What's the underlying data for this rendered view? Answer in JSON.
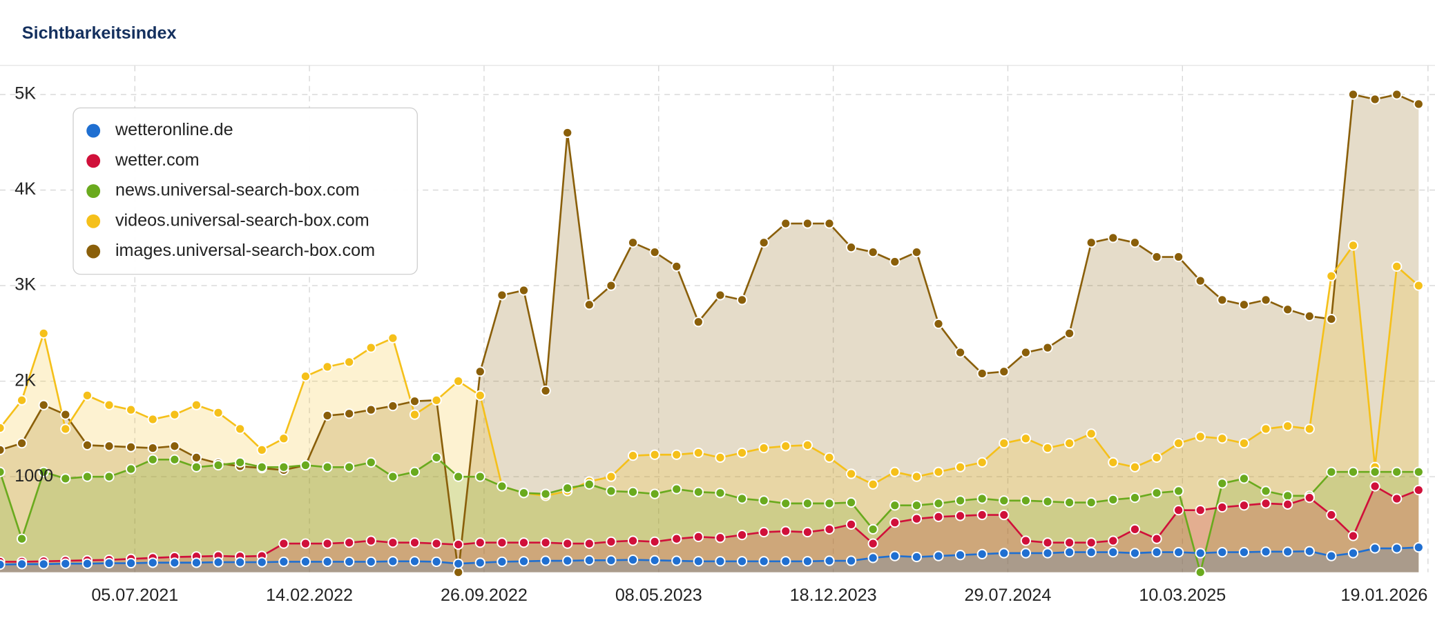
{
  "chart_data": {
    "type": "line",
    "title": "Sichtbarkeitsindex",
    "x": [
      "13.01.2021",
      "10.02.2021",
      "10.03.2021",
      "07.04.2021",
      "05.05.2021",
      "02.06.2021",
      "30.06.2021",
      "28.07.2021",
      "25.08.2021",
      "22.09.2021",
      "20.10.2021",
      "17.11.2021",
      "15.12.2021",
      "12.01.2022",
      "09.02.2022",
      "09.03.2022",
      "06.04.2022",
      "04.05.2022",
      "01.06.2022",
      "29.06.2022",
      "27.07.2022",
      "24.08.2022",
      "21.09.2022",
      "19.10.2022",
      "16.11.2022",
      "14.12.2022",
      "11.01.2023",
      "08.02.2023",
      "08.03.2023",
      "05.04.2023",
      "03.05.2023",
      "31.05.2023",
      "28.06.2023",
      "26.07.2023",
      "23.08.2023",
      "20.09.2023",
      "18.10.2023",
      "15.11.2023",
      "13.12.2023",
      "10.01.2024",
      "07.02.2024",
      "06.03.2024",
      "03.04.2024",
      "01.05.2024",
      "29.05.2024",
      "26.06.2024",
      "24.07.2024",
      "21.08.2024",
      "18.09.2024",
      "16.10.2024",
      "13.11.2024",
      "11.12.2024",
      "08.01.2025",
      "05.02.2025",
      "05.03.2025",
      "02.04.2025",
      "30.04.2025",
      "28.05.2025",
      "25.06.2025",
      "23.07.2025",
      "20.08.2025",
      "17.09.2025",
      "15.10.2025",
      "12.11.2025",
      "10.12.2025",
      "07.01.2026"
    ],
    "series": [
      {
        "name": "images.universal-search-box.com",
        "color": "#8a5f0a",
        "values": [
          1280,
          1350,
          1750,
          1650,
          1330,
          1320,
          1310,
          1300,
          1320,
          1200,
          1140,
          1110,
          1090,
          1070,
          1120,
          1640,
          1660,
          1700,
          1740,
          1790,
          1800,
          0,
          2100,
          2900,
          2950,
          1900,
          4600,
          2800,
          3000,
          3450,
          3350,
          3200,
          2620,
          2900,
          2850,
          3450,
          3650,
          3650,
          3650,
          3400,
          3350,
          3250,
          3350,
          2600,
          2300,
          2080,
          2100,
          2300,
          2350,
          2500,
          3450,
          3500,
          3450,
          3300,
          3300,
          3050,
          2850,
          2800,
          2850,
          2750,
          2680,
          2650,
          5000,
          4950,
          5000,
          4900
        ]
      },
      {
        "name": "videos.universal-search-box.com",
        "color": "#f5c01a",
        "values": [
          1510,
          1800,
          2500,
          1500,
          1850,
          1750,
          1700,
          1600,
          1650,
          1750,
          1670,
          1500,
          1280,
          1400,
          2050,
          2150,
          2200,
          2350,
          2450,
          1650,
          1800,
          2000,
          1850,
          900,
          830,
          800,
          850,
          950,
          1000,
          1220,
          1230,
          1230,
          1250,
          1200,
          1250,
          1300,
          1320,
          1330,
          1200,
          1030,
          920,
          1050,
          1000,
          1050,
          1100,
          1150,
          1350,
          1400,
          1300,
          1350,
          1450,
          1150,
          1100,
          1200,
          1350,
          1420,
          1400,
          1350,
          1500,
          1530,
          1500,
          3100,
          3420,
          1100,
          3200,
          3000
        ]
      },
      {
        "name": "news.universal-search-box.com",
        "color": "#6aaa1e",
        "values": [
          1050,
          350,
          1050,
          980,
          1000,
          1000,
          1080,
          1180,
          1180,
          1100,
          1120,
          1150,
          1100,
          1100,
          1120,
          1100,
          1100,
          1150,
          1000,
          1050,
          1200,
          1000,
          1000,
          900,
          830,
          820,
          880,
          920,
          850,
          840,
          820,
          870,
          840,
          830,
          770,
          750,
          720,
          720,
          720,
          730,
          450,
          700,
          700,
          720,
          750,
          770,
          750,
          750,
          740,
          730,
          730,
          760,
          780,
          830,
          850,
          0,
          930,
          980,
          850,
          800,
          800,
          1050,
          1050,
          1050,
          1050,
          1050
        ]
      },
      {
        "name": "wetter.com",
        "color": "#d0103a",
        "values": [
          110,
          110,
          115,
          120,
          125,
          130,
          140,
          150,
          160,
          165,
          170,
          165,
          170,
          300,
          300,
          300,
          310,
          330,
          310,
          310,
          300,
          290,
          310,
          310,
          310,
          310,
          300,
          300,
          320,
          330,
          320,
          350,
          370,
          360,
          390,
          420,
          430,
          420,
          450,
          500,
          300,
          520,
          560,
          580,
          590,
          600,
          600,
          330,
          310,
          310,
          310,
          330,
          450,
          350,
          650,
          650,
          680,
          700,
          720,
          710,
          780,
          600,
          380,
          900,
          770,
          860
        ]
      },
      {
        "name": "wetteronline.de",
        "color": "#1f6fd1",
        "values": [
          80,
          85,
          85,
          90,
          90,
          95,
          95,
          100,
          100,
          100,
          105,
          105,
          105,
          110,
          110,
          110,
          110,
          110,
          115,
          115,
          110,
          90,
          100,
          110,
          115,
          120,
          120,
          125,
          125,
          130,
          125,
          120,
          115,
          115,
          115,
          115,
          115,
          115,
          120,
          120,
          150,
          170,
          160,
          170,
          180,
          190,
          200,
          200,
          200,
          210,
          210,
          210,
          200,
          210,
          210,
          200,
          210,
          210,
          215,
          215,
          220,
          170,
          200,
          250,
          250,
          260
        ]
      }
    ],
    "xlim": [
      "13.01.2021",
      "28.01.2026"
    ],
    "xticks": [
      "05.07.2021",
      "14.02.2022",
      "26.09.2022",
      "08.05.2023",
      "18.12.2023",
      "29.07.2024",
      "10.03.2025",
      "19.01.2026"
    ],
    "ylim": [
      0,
      5300
    ],
    "yticks": [
      {
        "value": 1000,
        "label": "1000"
      },
      {
        "value": 2000,
        "label": "2K"
      },
      {
        "value": 3000,
        "label": "3K"
      },
      {
        "value": 4000,
        "label": "4K"
      },
      {
        "value": 5000,
        "label": "5K"
      }
    ],
    "grid": true,
    "legend": "upper left"
  }
}
